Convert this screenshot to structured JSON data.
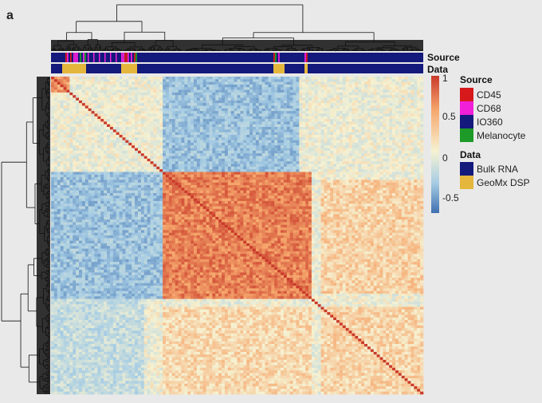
{
  "chart_data": {
    "type": "heatmap",
    "panel_label": "a",
    "annotation_rows": [
      "Source",
      "Data"
    ],
    "color_scale": {
      "ticks": [
        1,
        0.5,
        0,
        -0.5
      ],
      "range": [
        -0.75,
        1
      ],
      "colors": [
        "#3f6fb0",
        "#a7cde4",
        "#f6f2d2",
        "#f6a76d",
        "#c93a2a"
      ]
    },
    "legend": [
      {
        "title": "Source",
        "entries": [
          {
            "label": "CD45",
            "color": "#d7191c"
          },
          {
            "label": "CD68",
            "color": "#f01fd8"
          },
          {
            "label": "IO360",
            "color": "#14197c"
          },
          {
            "label": "Melanocyte",
            "color": "#1d9a27"
          }
        ]
      },
      {
        "title": "Data",
        "entries": [
          {
            "label": "Bulk RNA",
            "color": "#14197c"
          },
          {
            "label": "GeoMx DSP",
            "color": "#e5b63c"
          }
        ]
      }
    ],
    "blocks": [
      {
        "range": [
          0.0,
          0.3
        ],
        "value": 0.12
      },
      {
        "range": [
          0.3,
          1.0
        ],
        "value": 0.28
      },
      {
        "range": [
          0.3,
          0.7
        ],
        "value": 0.72
      },
      {
        "range": [
          0.5,
          0.66
        ],
        "value": 0.55
      },
      {
        "range": [
          0.66,
          0.72
        ],
        "value": 0.45
      },
      {
        "range": [
          0.72,
          1.0
        ],
        "value": 0.4
      }
    ]
  }
}
